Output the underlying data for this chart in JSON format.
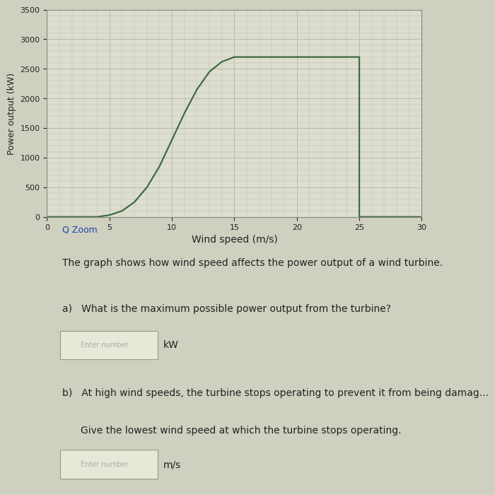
{
  "x_wind": [
    0,
    3,
    4,
    5,
    6,
    7,
    8,
    9,
    10,
    11,
    12,
    13,
    14,
    15,
    16,
    17,
    18,
    19,
    20,
    21,
    22,
    23,
    24,
    24.9,
    25,
    25,
    30
  ],
  "y_power": [
    0,
    0,
    0,
    30,
    100,
    250,
    500,
    850,
    1300,
    1750,
    2150,
    2450,
    2620,
    2700,
    2700,
    2700,
    2700,
    2700,
    2700,
    2700,
    2700,
    2700,
    2700,
    2700,
    2700,
    0,
    0
  ],
  "xlabel": "Wind speed (m/s)",
  "ylabel": "Power output (kW)",
  "xlim": [
    0,
    30
  ],
  "ylim": [
    0,
    3500
  ],
  "xticks": [
    0,
    5,
    10,
    15,
    20,
    25,
    30
  ],
  "yticks": [
    0,
    500,
    1000,
    1500,
    2000,
    2500,
    3000,
    3500
  ],
  "line_color": "#3d6b40",
  "line_width": 1.6,
  "grid_color": "#bbbbaa",
  "plot_bg_color": "#ddddd0",
  "fig_bg_color": "#d0d0c0",
  "xlabel_fontsize": 10,
  "ylabel_fontsize": 9,
  "tick_fontsize": 8,
  "text_color": "#222222",
  "blue_color": "#1a44aa",
  "zoom_text": "Q Zoom",
  "para1": "The graph shows how wind speed affects the power output of a wind turbine.",
  "qa_text": "a)   What is the maximum possible power output from the turbine?",
  "kw_label": "kW",
  "qb_text": "b)   At high wind speeds, the turbine stops operating to prevent it from being damag...",
  "qb_sub": "Give the lowest wind speed at which the turbine stops operating.",
  "ms_label": "m/s",
  "box_placeholder_a": "Enter number",
  "box_placeholder_b": "Enter number"
}
